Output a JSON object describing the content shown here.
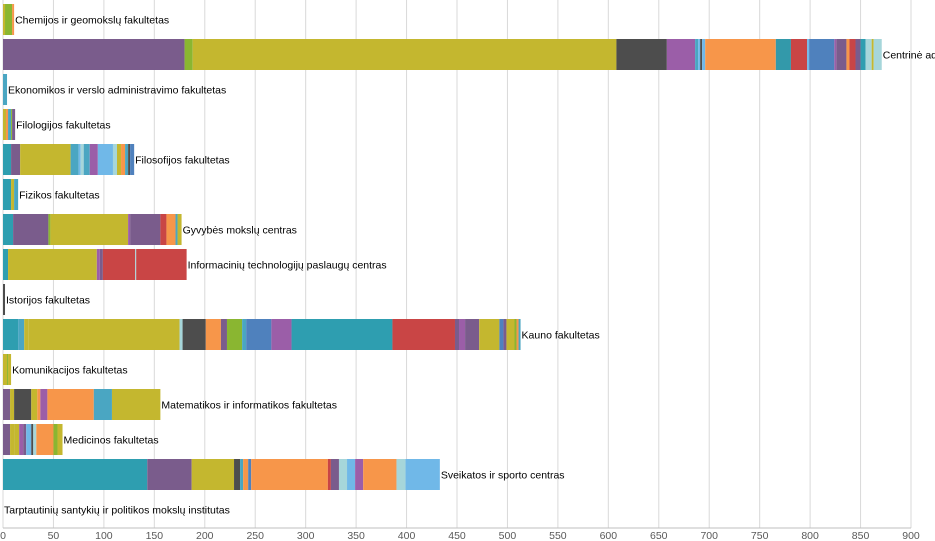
{
  "chart_data": {
    "type": "bar",
    "orientation": "horizontal",
    "stacked": true,
    "title": "",
    "xlabel": "",
    "ylabel": "",
    "xlim": [
      0,
      900
    ],
    "x_ticks": [
      0,
      50,
      100,
      150,
      200,
      250,
      300,
      350,
      400,
      450,
      500,
      550,
      600,
      650,
      700,
      750,
      800,
      850,
      900
    ],
    "grid": true,
    "legend": "none",
    "colors": [
      "#2e9eb0",
      "#7a5c8c",
      "#8ab631",
      "#c4b72f",
      "#4d4d4d",
      "#9b5ea8",
      "#4aa6c2",
      "#f7964a",
      "#3399aa",
      "#c94545",
      "#4f81bd",
      "#a6d6da",
      "#70b8e8",
      "#bfbfbf"
    ],
    "categories": [
      "Chemijos ir geomokslų fakultetas",
      "Centrinė administracija",
      "Ekonomikos ir verslo administravimo fakultetas",
      "Filologijos fakultetas",
      "Filosofijos fakultetas",
      "Fizikos fakultetas",
      "Gyvybės mokslų centras",
      "Informacinių technologijų paslaugų centras",
      "Istorijos fakultetas",
      "Kauno fakultetas",
      "Komunikacijos fakultetas",
      "Matematikos ir informatikos fakultetas",
      "Medicinos fakultetas",
      "Sveikatos ir sporto centras",
      "Tarptautinių santykių ir politikos mokslų institutas"
    ],
    "bars": [
      {
        "segments": [
          [
            3,
            2
          ],
          [
            2,
            7
          ],
          [
            7,
            2
          ]
        ]
      },
      {
        "segments": [
          [
            1,
            180
          ],
          [
            2,
            8
          ],
          [
            3,
            420
          ],
          [
            4,
            50
          ],
          [
            5,
            28
          ],
          [
            6,
            3
          ],
          [
            12,
            2
          ],
          [
            4,
            2
          ],
          [
            12,
            3
          ],
          [
            7,
            70
          ],
          [
            8,
            15
          ],
          [
            9,
            16
          ],
          [
            12,
            2
          ],
          [
            10,
            25
          ],
          [
            5,
            2
          ],
          [
            1,
            10
          ],
          [
            7,
            3
          ],
          [
            9,
            6
          ],
          [
            1,
            5
          ],
          [
            0,
            5
          ],
          [
            11,
            6
          ],
          [
            3,
            2
          ],
          [
            11,
            8
          ]
        ]
      },
      {
        "segments": [
          [
            6,
            4
          ]
        ]
      },
      {
        "segments": [
          [
            3,
            3
          ],
          [
            7,
            2
          ],
          [
            6,
            3
          ],
          [
            2,
            1
          ],
          [
            1,
            3
          ]
        ]
      },
      {
        "segments": [
          [
            0,
            8
          ],
          [
            1,
            9
          ],
          [
            3,
            50
          ],
          [
            6,
            8
          ],
          [
            12,
            2
          ],
          [
            11,
            3
          ],
          [
            6,
            6
          ],
          [
            5,
            8
          ],
          [
            12,
            15
          ],
          [
            11,
            4
          ],
          [
            3,
            4
          ],
          [
            7,
            4
          ],
          [
            6,
            3
          ],
          [
            4,
            2
          ],
          [
            10,
            4
          ]
        ]
      },
      {
        "segments": [
          [
            0,
            8
          ],
          [
            3,
            3
          ],
          [
            6,
            4
          ]
        ]
      },
      {
        "segments": [
          [
            0,
            10
          ],
          [
            1,
            35
          ],
          [
            2,
            2
          ],
          [
            3,
            77
          ],
          [
            5,
            2
          ],
          [
            1,
            30
          ],
          [
            9,
            6
          ],
          [
            7,
            9
          ],
          [
            6,
            2
          ],
          [
            3,
            4
          ]
        ]
      },
      {
        "segments": [
          [
            0,
            5
          ],
          [
            3,
            88
          ],
          [
            5,
            3
          ],
          [
            1,
            3
          ],
          [
            9,
            32
          ],
          [
            11,
            1
          ],
          [
            9,
            50
          ]
        ]
      },
      {
        "segments": [
          [
            4,
            2
          ]
        ]
      },
      {
        "segments": [
          [
            0,
            15
          ],
          [
            6,
            6
          ],
          [
            3,
            4
          ],
          [
            3,
            150
          ],
          [
            11,
            3
          ],
          [
            4,
            23
          ],
          [
            7,
            15
          ],
          [
            1,
            6
          ],
          [
            2,
            15
          ],
          [
            6,
            4
          ],
          [
            10,
            25
          ],
          [
            5,
            20
          ],
          [
            0,
            100
          ],
          [
            9,
            62
          ],
          [
            1,
            4
          ],
          [
            5,
            6
          ],
          [
            1,
            14
          ],
          [
            3,
            20
          ],
          [
            10,
            4
          ],
          [
            1,
            3
          ],
          [
            3,
            8
          ],
          [
            2,
            2
          ],
          [
            7,
            2
          ],
          [
            6,
            2
          ]
        ]
      },
      {
        "segments": [
          [
            3,
            4
          ],
          [
            2,
            1
          ],
          [
            3,
            3
          ]
        ]
      },
      {
        "segments": [
          [
            1,
            7
          ],
          [
            3,
            4
          ],
          [
            4,
            17
          ],
          [
            3,
            6
          ],
          [
            7,
            3
          ],
          [
            5,
            7
          ],
          [
            7,
            46
          ],
          [
            6,
            18
          ],
          [
            3,
            48
          ]
        ]
      },
      {
        "segments": [
          [
            1,
            7
          ],
          [
            3,
            4
          ],
          [
            3,
            5
          ],
          [
            5,
            4
          ],
          [
            1,
            3
          ],
          [
            12,
            5
          ],
          [
            4,
            2
          ],
          [
            11,
            3
          ],
          [
            7,
            17
          ],
          [
            2,
            4
          ],
          [
            3,
            5
          ]
        ]
      },
      {
        "segments": [
          [
            0,
            143
          ],
          [
            1,
            44
          ],
          [
            3,
            42
          ],
          [
            4,
            6
          ],
          [
            6,
            3
          ],
          [
            7,
            5
          ],
          [
            10,
            3
          ],
          [
            7,
            76
          ],
          [
            9,
            3
          ],
          [
            1,
            8
          ],
          [
            11,
            8
          ],
          [
            12,
            8
          ],
          [
            5,
            8
          ],
          [
            7,
            33
          ],
          [
            11,
            9
          ],
          [
            12,
            34
          ]
        ]
      },
      {
        "segments": []
      }
    ]
  }
}
